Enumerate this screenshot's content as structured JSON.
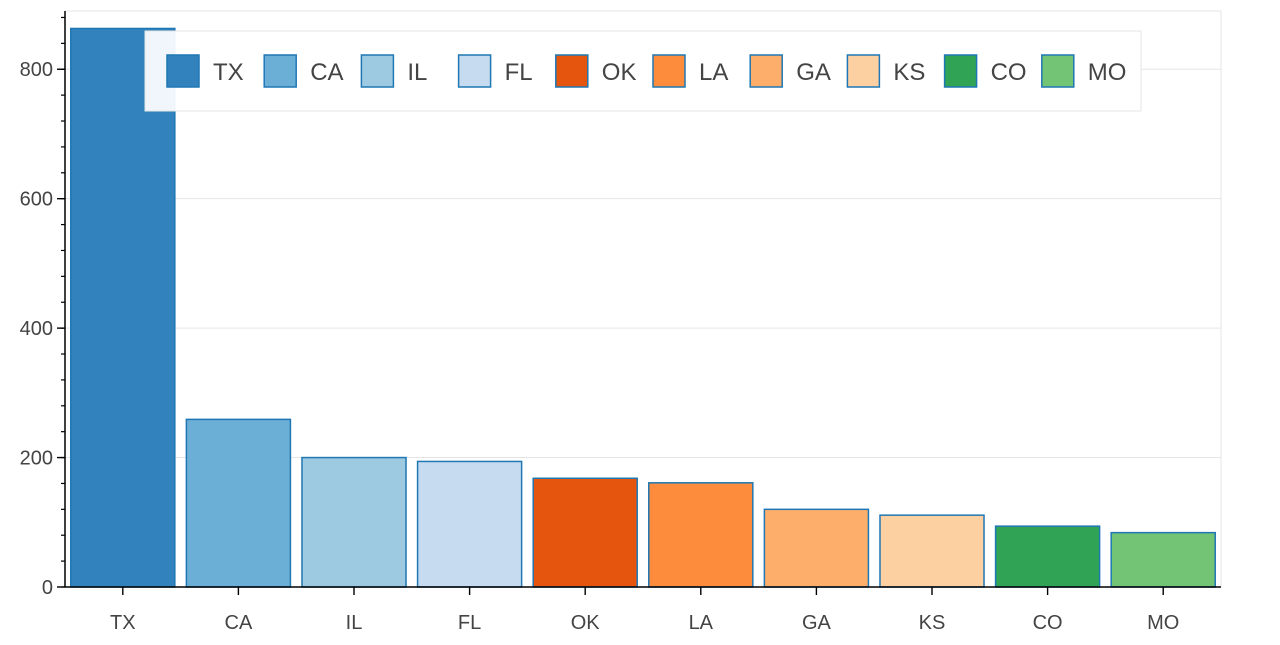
{
  "chart_data": {
    "type": "bar",
    "categories": [
      "TX",
      "CA",
      "IL",
      "FL",
      "OK",
      "LA",
      "GA",
      "KS",
      "CO",
      "MO"
    ],
    "values": [
      863,
      259,
      200,
      194,
      168,
      161,
      120,
      111,
      94,
      84
    ],
    "colors": [
      "#3182bd",
      "#6baed6",
      "#9ecae1",
      "#c6dbef",
      "#e6550d",
      "#fd8d3c",
      "#fdae6b",
      "#fdd0a2",
      "#31a354",
      "#74c476"
    ],
    "bar_outline_color": "#1f77b4",
    "ylim": [
      0,
      890
    ],
    "yticks": [
      0,
      200,
      400,
      600,
      800
    ],
    "ymajor_step": 200,
    "yminor_step": 40,
    "grid": true,
    "legend": {
      "position": "top",
      "orientation": "horizontal",
      "entries": [
        "TX",
        "CA",
        "IL",
        "FL",
        "OK",
        "LA",
        "GA",
        "KS",
        "CO",
        "MO"
      ]
    },
    "title": "",
    "xlabel": "",
    "ylabel": ""
  }
}
